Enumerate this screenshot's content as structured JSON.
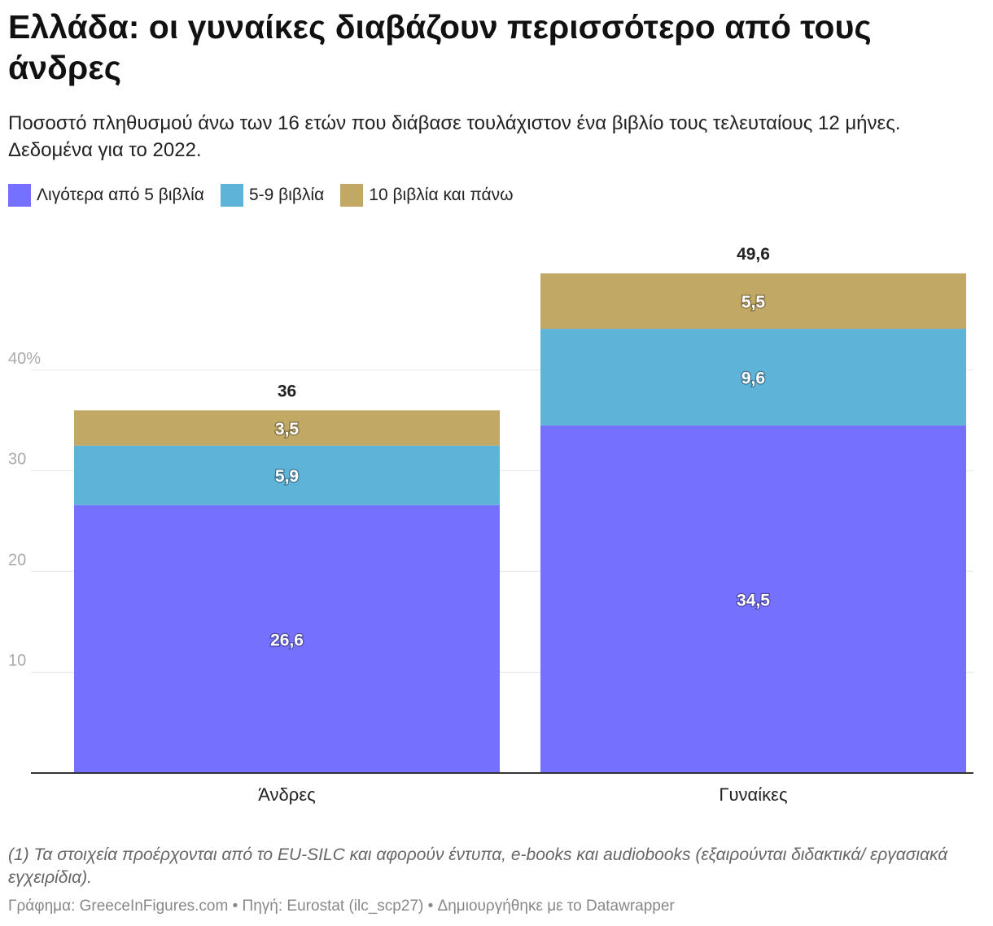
{
  "header": {
    "title": " Ελλάδα: οι γυναίκες διαβάζουν περισσότερο από τους άνδρες",
    "subtitle": "Ποσοστό πληθυσμού άνω των 16 ετών που διάβασε τουλάχιστον ένα βιβλίο τους τελευταίους 12 μήνες. Δεδομένα για το 2022."
  },
  "colors": {
    "series1": "#7570fe",
    "series2": "#5eb3d8",
    "series3": "#c1a865",
    "gridline": "#e5e5e5",
    "axis": "#333333",
    "tick_text": "#aaaaaa"
  },
  "chart_data": {
    "type": "bar",
    "stacked": true,
    "categories": [
      "Άνδρες",
      "Γυναίκες"
    ],
    "series": [
      {
        "name": "Λιγότερα από 5 βιβλία",
        "values": [
          26.6,
          34.5
        ],
        "labels": [
          "26,6",
          "34,5"
        ]
      },
      {
        "name": "5-9 βιβλία",
        "values": [
          5.9,
          9.6
        ],
        "labels": [
          "5,9",
          "9,6"
        ]
      },
      {
        "name": "10 βιβλία και πάνω",
        "values": [
          3.5,
          5.5
        ],
        "labels": [
          "3,5",
          "5,5"
        ]
      }
    ],
    "totals": [
      36,
      49.6
    ],
    "total_labels": [
      "36",
      "49,6"
    ],
    "y_ticks": [
      10,
      20,
      30,
      40
    ],
    "y_tick_labels": [
      "10",
      "20",
      "30",
      "40%"
    ],
    "ylim": [
      0,
      50
    ],
    "xlabel": "",
    "ylabel": "",
    "legend_position": "top-left"
  },
  "footer": {
    "note": "(1) Τα στοιχεία προέρχονται από το EU-SILC και αφορούν έντυπα, e-books και audiobooks (εξαιρούνται διδακτικά/ εργασιακά εγχειρίδια).",
    "credits": "Γράφημα: GreeceInFigures.com • Πηγή: Eurostat (ilc_scp27) • Δημιουργήθηκε με το Datawrapper"
  }
}
